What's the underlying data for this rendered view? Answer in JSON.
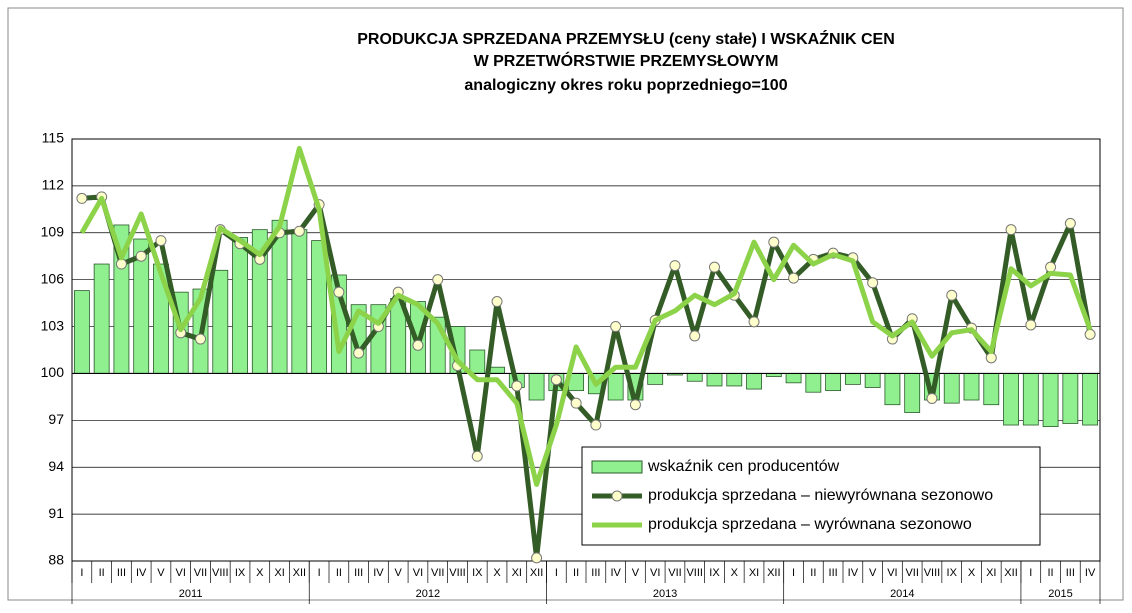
{
  "chart_data": {
    "type": "bar-line",
    "title": [
      "PRODUKCJA SPRZEDANA PRZEMYSŁU (ceny stałe)  I WSKAŹNIK CEN",
      "W PRZETWÓRSTWIE PRZEMYSŁOWYM",
      "analogiczny okres roku poprzedniego=100"
    ],
    "categories": [
      "I",
      "II",
      "III",
      "IV",
      "V",
      "VI",
      "VII",
      "VIII",
      "IX",
      "X",
      "XI",
      "XII",
      "I",
      "II",
      "III",
      "IV",
      "V",
      "VI",
      "VII",
      "VIII",
      "IX",
      "X",
      "XI",
      "XII",
      "I",
      "II",
      "III",
      "IV",
      "V",
      "VI",
      "VII",
      "VIII",
      "IX",
      "X",
      "XI",
      "XII",
      "I",
      "II",
      "III",
      "IV",
      "V",
      "VI",
      "VII",
      "VIII",
      "IX",
      "X",
      "XI",
      "XII",
      "I",
      "II",
      "III",
      "IV"
    ],
    "groups": [
      {
        "label": "2011",
        "size": 12
      },
      {
        "label": "2012",
        "size": 12
      },
      {
        "label": "2013",
        "size": 12
      },
      {
        "label": "2014",
        "size": 12
      },
      {
        "label": "2015",
        "size": 4
      }
    ],
    "bar_base": 100,
    "ylim": [
      88,
      115
    ],
    "yticks": [
      88,
      91,
      94,
      97,
      100,
      103,
      106,
      109,
      112,
      115
    ],
    "legend_position": "lower right",
    "series": [
      {
        "name": "wskaźnik cen producentów",
        "kind": "bar",
        "color": "#90f090",
        "values": [
          105.3,
          107.0,
          109.5,
          108.6,
          107.0,
          105.2,
          105.4,
          106.6,
          108.7,
          109.2,
          109.8,
          109.2,
          108.5,
          106.3,
          104.4,
          104.4,
          104.8,
          104.6,
          103.6,
          103.0,
          101.5,
          100.4,
          99.1,
          98.3,
          98.9,
          98.9,
          98.7,
          98.3,
          98.3,
          99.3,
          99.9,
          99.5,
          99.2,
          99.2,
          99.0,
          99.8,
          99.4,
          98.8,
          98.9,
          99.3,
          99.1,
          98.0,
          97.5,
          98.3,
          98.1,
          98.3,
          98.0,
          96.7,
          96.7,
          96.6,
          96.8,
          96.7
        ]
      },
      {
        "name": "produkcja sprzedana – niewyrównana sezonowo",
        "kind": "line-marker",
        "color": "#335c26",
        "values": [
          111.2,
          111.3,
          107.0,
          107.5,
          108.5,
          102.6,
          102.2,
          109.2,
          108.3,
          107.3,
          109.0,
          109.1,
          110.8,
          105.2,
          101.3,
          103.0,
          105.2,
          101.8,
          106.0,
          100.5,
          94.7,
          104.6,
          99.2,
          88.2,
          99.6,
          98.1,
          96.7,
          103.0,
          98.0,
          103.4,
          106.9,
          102.4,
          106.8,
          105.0,
          103.3,
          108.4,
          106.1,
          107.3,
          107.7,
          107.4,
          105.8,
          102.2,
          103.5,
          98.4,
          105.0,
          102.9,
          101.0,
          109.2,
          103.1,
          106.8,
          109.6,
          102.5
        ]
      },
      {
        "name": "produkcja sprzedana – wyrównana sezonowo",
        "kind": "line",
        "color": "#8cd34a",
        "values": [
          109.0,
          111.2,
          107.4,
          110.2,
          106.4,
          102.8,
          104.8,
          109.3,
          108.5,
          107.6,
          109.4,
          114.4,
          110.5,
          101.4,
          104.0,
          103.2,
          105.0,
          104.4,
          103.2,
          100.8,
          99.6,
          99.6,
          98.1,
          92.9,
          96.7,
          101.7,
          99.3,
          100.4,
          100.4,
          103.4,
          104.0,
          105.0,
          104.4,
          105.1,
          108.4,
          106.0,
          108.2,
          107.0,
          107.6,
          107.2,
          103.3,
          102.4,
          103.3,
          101.1,
          102.6,
          102.8,
          101.4,
          106.7,
          105.6,
          106.4,
          106.3,
          102.8
        ]
      }
    ]
  }
}
